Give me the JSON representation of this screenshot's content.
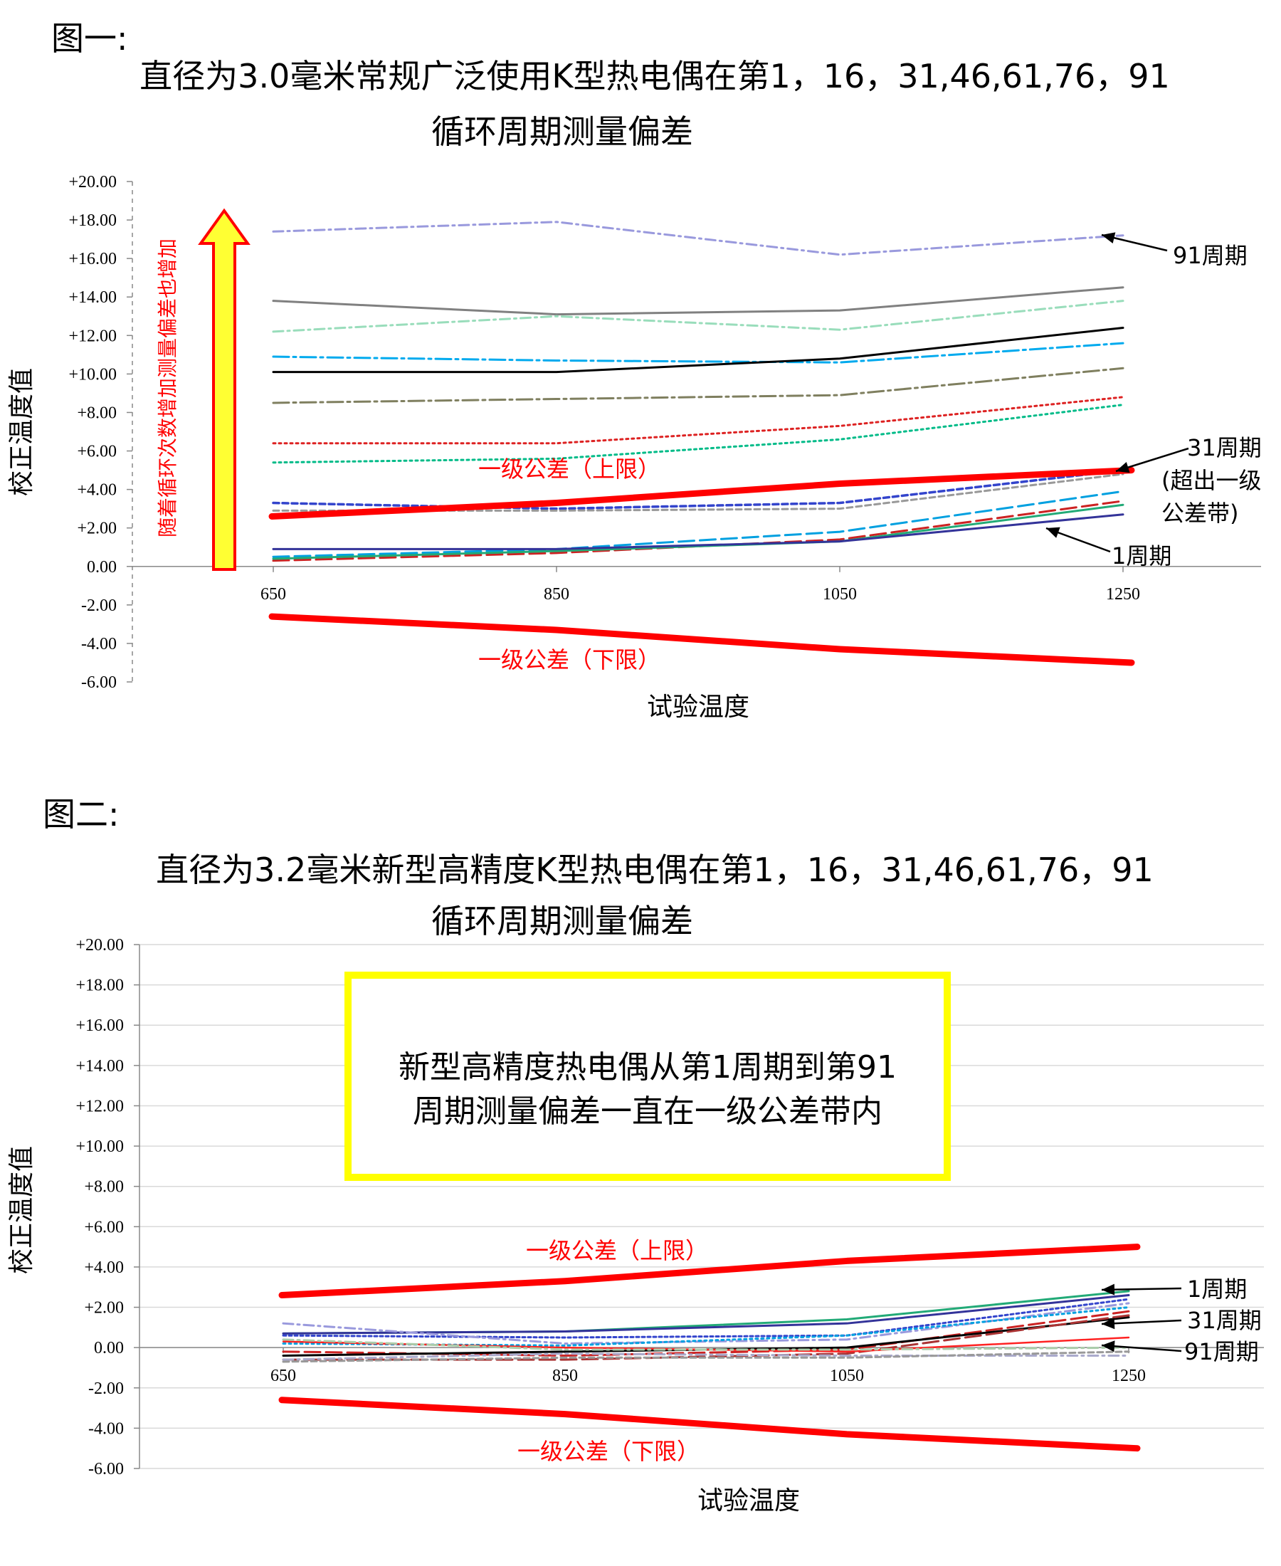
{
  "figure1": {
    "label": "图一:",
    "title_line1": "直径为3.0毫米常规广泛使用K型热电偶在第1，16，31,46,61,76，91",
    "title_line2": "循环周期测量偏差",
    "side_note": "随着循环次数增加测量偏差也增加",
    "ann_91": "91周期",
    "ann_31_a": "31周期",
    "ann_31_b": "(超出一级",
    "ann_31_c": "公差带)",
    "ann_1": "1周期",
    "upper_label": "一级公差（上限）",
    "lower_label": "一级公差（下限）"
  },
  "figure2": {
    "label": "图二:",
    "title_line1": "直径为3.2毫米新型高精度K型热电偶在第1，16，31,46,61,76，91",
    "title_line2": "循环周期测量偏差",
    "callout_line1": "新型高精度热电偶从第1周期到第91",
    "callout_line2": "周期测量偏差一直在一级公差带内",
    "ann_1": "1周期",
    "ann_31": "31周期",
    "ann_91": "91周期",
    "upper_label": "一级公差（上限）",
    "lower_label": "一级公差（下限）"
  },
  "colors": {
    "tolerance": "#ff0000",
    "arrow_fill": "#ffff33",
    "callout_border": "#ffff00"
  },
  "chart_data": [
    {
      "type": "line",
      "xlabel": "试验温度",
      "ylabel": "校正温度值",
      "x": [
        650,
        850,
        1050,
        1250
      ],
      "ylim": [
        -6,
        20
      ],
      "yticks": [
        "+20.00",
        "+18.00",
        "+16.00",
        "+14.00",
        "+12.00",
        "+10.00",
        "+8.00",
        "+6.00",
        "+4.00",
        "+2.00",
        "0.00",
        "-2.00",
        "-4.00",
        "-6.00"
      ],
      "grid": false,
      "series": [
        {
          "name": "91周期",
          "values": [
            17.4,
            17.9,
            16.2,
            17.2
          ],
          "color": "#9999dd",
          "dash": "14,6,3,6",
          "width": 3
        },
        {
          "values": [
            13.8,
            13.1,
            13.3,
            14.5
          ],
          "color": "#808080",
          "dash": "",
          "width": 3
        },
        {
          "values": [
            12.2,
            13.0,
            12.3,
            13.8
          ],
          "color": "#99ddbb",
          "dash": "14,6,3,6",
          "width": 3
        },
        {
          "values": [
            10.9,
            10.7,
            10.6,
            11.6
          ],
          "color": "#00aaee",
          "dash": "22,6,4,6",
          "width": 3
        },
        {
          "values": [
            10.1,
            10.1,
            10.8,
            12.4
          ],
          "color": "#000000",
          "dash": "",
          "width": 3
        },
        {
          "values": [
            8.5,
            8.7,
            8.9,
            10.3
          ],
          "color": "#7f7f5f",
          "dash": "22,6,4,6",
          "width": 3
        },
        {
          "values": [
            6.4,
            6.4,
            7.3,
            8.8
          ],
          "color": "#dd2222",
          "dash": "3,5",
          "width": 3
        },
        {
          "values": [
            5.4,
            5.6,
            6.6,
            8.4
          ],
          "color": "#00bb88",
          "dash": "3,5",
          "width": 3
        },
        {
          "name": "31周期",
          "values": [
            3.3,
            3.0,
            3.3,
            5.0
          ],
          "color": "#3344cc",
          "dash": "8,5",
          "width": 3.5
        },
        {
          "values": [
            2.9,
            2.9,
            3.0,
            4.8
          ],
          "color": "#999999",
          "dash": "8,5",
          "width": 3
        },
        {
          "values": [
            0.5,
            0.9,
            1.8,
            3.9
          ],
          "color": "#00a0e0",
          "dash": "22,8",
          "width": 3
        },
        {
          "values": [
            0.3,
            0.7,
            1.4,
            3.4
          ],
          "color": "#cc2222",
          "dash": "22,8",
          "width": 3
        },
        {
          "values": [
            0.4,
            0.8,
            1.3,
            3.2
          ],
          "color": "#22aa77",
          "dash": "",
          "width": 3
        },
        {
          "name": "1周期",
          "values": [
            0.9,
            0.9,
            1.3,
            2.7
          ],
          "color": "#333399",
          "dash": "",
          "width": 3
        },
        {
          "name": "一级公差（上限）",
          "values": [
            2.6,
            3.3,
            4.3,
            5.0
          ],
          "color": "#ff0000",
          "dash": "",
          "width": 9
        },
        {
          "name": "一级公差（下限）",
          "values": [
            -2.6,
            -3.3,
            -4.3,
            -5.0
          ],
          "color": "#ff0000",
          "dash": "",
          "width": 9
        }
      ]
    },
    {
      "type": "line",
      "xlabel": "试验温度",
      "ylabel": "校正温度值",
      "x": [
        650,
        850,
        1050,
        1250
      ],
      "ylim": [
        -6,
        20
      ],
      "yticks": [
        "+20.00",
        "+18.00",
        "+16.00",
        "+14.00",
        "+12.00",
        "+10.00",
        "+8.00",
        "+6.00",
        "+4.00",
        "+2.00",
        "0.00",
        "-2.00",
        "-4.00",
        "-6.00"
      ],
      "grid": true,
      "series": [
        {
          "name": "1周期",
          "values": [
            0.7,
            0.8,
            1.4,
            2.8
          ],
          "color": "#22aa77",
          "dash": "",
          "width": 3
        },
        {
          "values": [
            0.7,
            0.8,
            1.2,
            2.6
          ],
          "color": "#333399",
          "dash": "",
          "width": 3
        },
        {
          "values": [
            0.6,
            0.5,
            0.6,
            2.4
          ],
          "color": "#3344cc",
          "dash": "4,4",
          "width": 3
        },
        {
          "values": [
            1.2,
            0.2,
            0.4,
            2.2
          ],
          "color": "#9999dd",
          "dash": "14,6,3,6",
          "width": 3
        },
        {
          "values": [
            0.2,
            0.1,
            0.6,
            2.0
          ],
          "color": "#00a0e0",
          "dash": "3,5",
          "width": 3
        },
        {
          "name": "31周期",
          "values": [
            -0.2,
            -0.4,
            -0.1,
            1.8
          ],
          "color": "#cc2222",
          "dash": "22,8",
          "width": 3
        },
        {
          "values": [
            -0.4,
            -0.2,
            0.0,
            1.5
          ],
          "color": "#000000",
          "dash": "",
          "width": 3
        },
        {
          "values": [
            -0.6,
            -0.6,
            -0.3,
            1.6
          ],
          "color": "#aa3333",
          "dash": "22,8",
          "width": 3
        },
        {
          "values": [
            0.3,
            0.0,
            -0.2,
            0.5
          ],
          "color": "#ff2222",
          "dash": "",
          "width": 2.5
        },
        {
          "values": [
            0.4,
            -0.1,
            -0.1,
            0.0
          ],
          "color": "#aaccaa",
          "dash": "14,6,3,6",
          "width": 3
        },
        {
          "name": "91周期",
          "values": [
            -0.6,
            -0.3,
            -0.4,
            -0.4
          ],
          "color": "#aaaacc",
          "dash": "14,6,3,6",
          "width": 3
        },
        {
          "values": [
            -0.7,
            -0.5,
            -0.5,
            -0.2
          ],
          "color": "#999999",
          "dash": "8,5",
          "width": 3
        },
        {
          "name": "一级公差（上限）",
          "values": [
            2.6,
            3.3,
            4.3,
            5.0
          ],
          "color": "#ff0000",
          "dash": "",
          "width": 9
        },
        {
          "name": "一级公差（下限）",
          "values": [
            -2.6,
            -3.3,
            -4.3,
            -5.0
          ],
          "color": "#ff0000",
          "dash": "",
          "width": 9
        }
      ]
    }
  ]
}
